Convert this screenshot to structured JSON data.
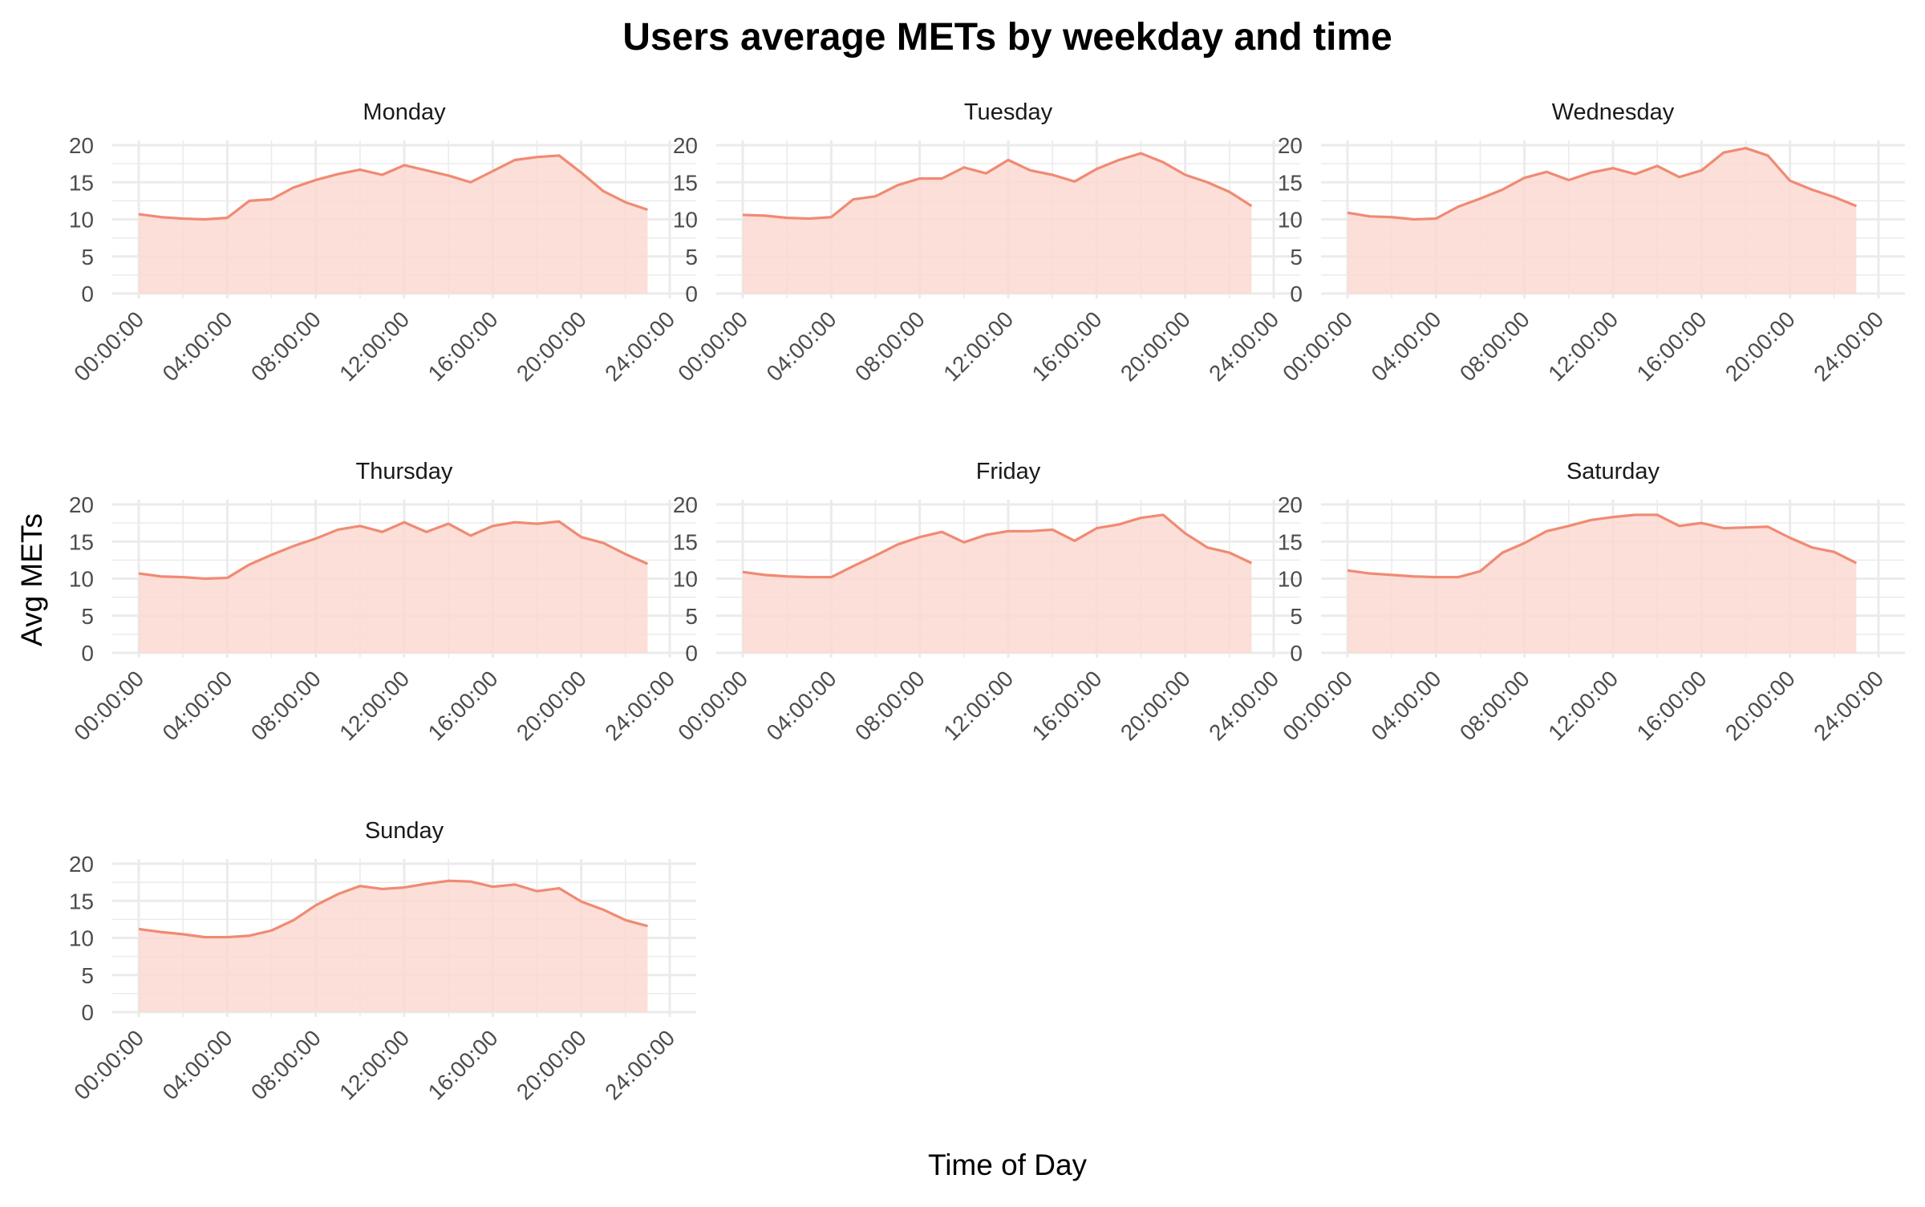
{
  "chart_data": {
    "type": "area",
    "title": "Users average METs by weekday and time",
    "xlabel": "Time of Day",
    "ylabel": "Avg METs",
    "ylim": [
      0,
      20
    ],
    "xlim_hours": [
      0,
      24
    ],
    "y_ticks": [
      "0",
      "5",
      "10",
      "15",
      "20"
    ],
    "x_ticks": [
      "00:00:00",
      "04:00:00",
      "08:00:00",
      "12:00:00",
      "16:00:00",
      "20:00:00",
      "24:00:00"
    ],
    "x_tick_hours": [
      0,
      4,
      8,
      12,
      16,
      20,
      24
    ],
    "x_hours": [
      0,
      1,
      2,
      3,
      4,
      5,
      6,
      7,
      8,
      9,
      10,
      11,
      12,
      13,
      14,
      15,
      16,
      17,
      18,
      19,
      20,
      21,
      22,
      23
    ],
    "grid": true,
    "legend": "none",
    "colors": {
      "line": "#f08a73",
      "fill": "#fcd9d1"
    },
    "panels": [
      {
        "name": "Monday",
        "values": [
          10.7,
          10.3,
          10.1,
          10.0,
          10.2,
          12.5,
          12.7,
          14.3,
          15.3,
          16.1,
          16.7,
          16.0,
          17.3,
          16.6,
          15.9,
          15.0,
          16.5,
          18.0,
          18.4,
          18.6,
          16.3,
          13.8,
          12.3,
          11.3
        ]
      },
      {
        "name": "Tuesday",
        "values": [
          10.6,
          10.5,
          10.2,
          10.1,
          10.3,
          12.7,
          13.1,
          14.6,
          15.5,
          15.5,
          17.0,
          16.2,
          18.0,
          16.6,
          16.0,
          15.1,
          16.8,
          18.0,
          18.9,
          17.7,
          16.0,
          15.0,
          13.7,
          11.8
        ]
      },
      {
        "name": "Wednesday",
        "values": [
          10.9,
          10.4,
          10.3,
          10.0,
          10.1,
          11.7,
          12.8,
          14.0,
          15.6,
          16.4,
          15.3,
          16.3,
          16.9,
          16.1,
          17.2,
          15.7,
          16.6,
          19.0,
          19.6,
          18.6,
          15.2,
          14.0,
          13.0,
          11.8
        ]
      },
      {
        "name": "Thursday",
        "values": [
          10.7,
          10.3,
          10.2,
          10.0,
          10.1,
          11.9,
          13.2,
          14.4,
          15.4,
          16.6,
          17.1,
          16.3,
          17.6,
          16.3,
          17.4,
          15.8,
          17.1,
          17.6,
          17.4,
          17.7,
          15.6,
          14.8,
          13.3,
          12.0
        ]
      },
      {
        "name": "Friday",
        "values": [
          10.9,
          10.5,
          10.3,
          10.2,
          10.2,
          11.7,
          13.1,
          14.6,
          15.6,
          16.3,
          14.9,
          15.9,
          16.4,
          16.4,
          16.6,
          15.1,
          16.8,
          17.3,
          18.2,
          18.6,
          16.1,
          14.2,
          13.5,
          12.1
        ]
      },
      {
        "name": "Saturday",
        "values": [
          11.1,
          10.7,
          10.5,
          10.3,
          10.2,
          10.2,
          11.0,
          13.5,
          14.8,
          16.4,
          17.1,
          17.9,
          18.3,
          18.6,
          18.6,
          17.1,
          17.5,
          16.8,
          16.9,
          17.0,
          15.5,
          14.2,
          13.6,
          12.1
        ]
      },
      {
        "name": "Sunday",
        "values": [
          11.2,
          10.8,
          10.5,
          10.1,
          10.1,
          10.3,
          11.0,
          12.4,
          14.4,
          15.9,
          17.0,
          16.6,
          16.8,
          17.3,
          17.7,
          17.6,
          16.9,
          17.2,
          16.3,
          16.7,
          14.9,
          13.8,
          12.4,
          11.6
        ]
      }
    ]
  }
}
